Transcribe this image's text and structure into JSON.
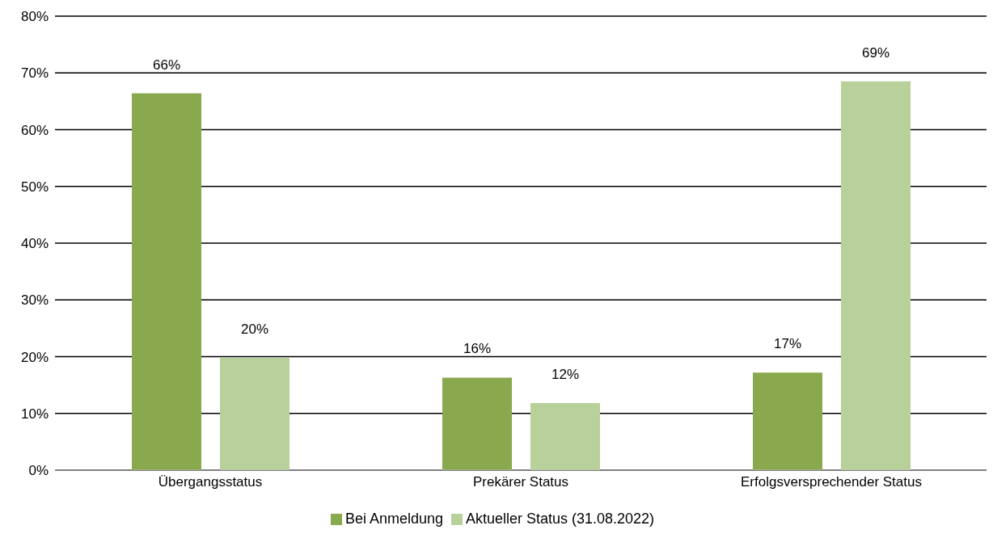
{
  "chart_data": {
    "type": "bar",
    "categories": [
      "Übergangsstatus",
      "Prekärer Status",
      "Erfolgsversprechender Status"
    ],
    "series": [
      {
        "name": "Bei Anmeldung",
        "color": "#8aa84e",
        "values": [
          66.4,
          16.3,
          17.2
        ],
        "value_labels": [
          "66%",
          "16%",
          "17%"
        ]
      },
      {
        "name": "Aktueller Status (31.08.2022)",
        "color": "#b8d09a",
        "values": [
          19.8,
          11.8,
          68.5
        ],
        "value_labels": [
          "20%",
          "12%",
          "69%"
        ]
      }
    ],
    "ylim": [
      0,
      80
    ],
    "yticks": [
      {
        "value": 0,
        "label": "0%"
      },
      {
        "value": 10,
        "label": "10%"
      },
      {
        "value": 20,
        "label": "20%"
      },
      {
        "value": 30,
        "label": "30%"
      },
      {
        "value": 40,
        "label": "40%"
      },
      {
        "value": 50,
        "label": "50%"
      },
      {
        "value": 60,
        "label": "60%"
      },
      {
        "value": 70,
        "label": "70%"
      },
      {
        "value": 80,
        "label": "80%"
      }
    ],
    "grid": "y",
    "legend": "bottom"
  }
}
